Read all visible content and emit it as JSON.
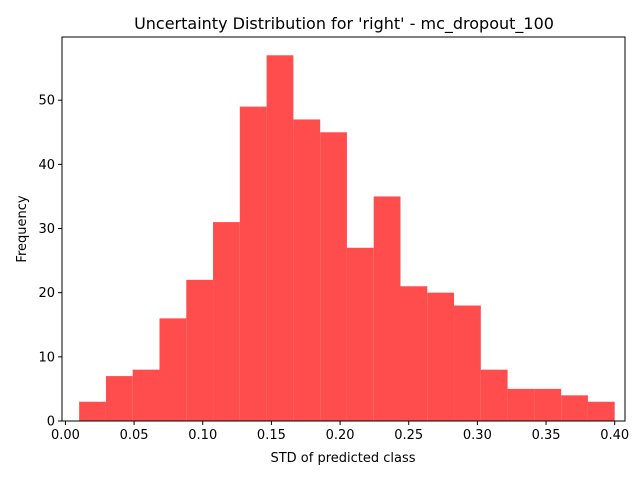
{
  "chart_data": {
    "type": "bar",
    "title": "Uncertainty Distribution for 'right' - mc_dropout_100",
    "xlabel": "STD of predicted class",
    "ylabel": "Frequency",
    "bar_color": "#ff4c4c",
    "xlim": [
      -0.0025,
      0.4075
    ],
    "ylim": [
      0,
      59.85
    ],
    "xticks": [
      "0.00",
      "0.05",
      "0.10",
      "0.15",
      "0.20",
      "0.25",
      "0.30",
      "0.35",
      "0.40"
    ],
    "yticks": [
      "0",
      "10",
      "20",
      "30",
      "40",
      "50"
    ],
    "bin_edges": [
      0.01,
      0.0295,
      0.049,
      0.0685,
      0.088,
      0.1075,
      0.127,
      0.1465,
      0.166,
      0.1855,
      0.205,
      0.2245,
      0.244,
      0.2635,
      0.283,
      0.3025,
      0.322,
      0.3415,
      0.361,
      0.3805,
      0.4
    ],
    "values": [
      3,
      7,
      8,
      16,
      22,
      31,
      49,
      57,
      47,
      45,
      27,
      35,
      21,
      20,
      18,
      8,
      5,
      5,
      4,
      3
    ],
    "grid": false,
    "legend": false
  }
}
